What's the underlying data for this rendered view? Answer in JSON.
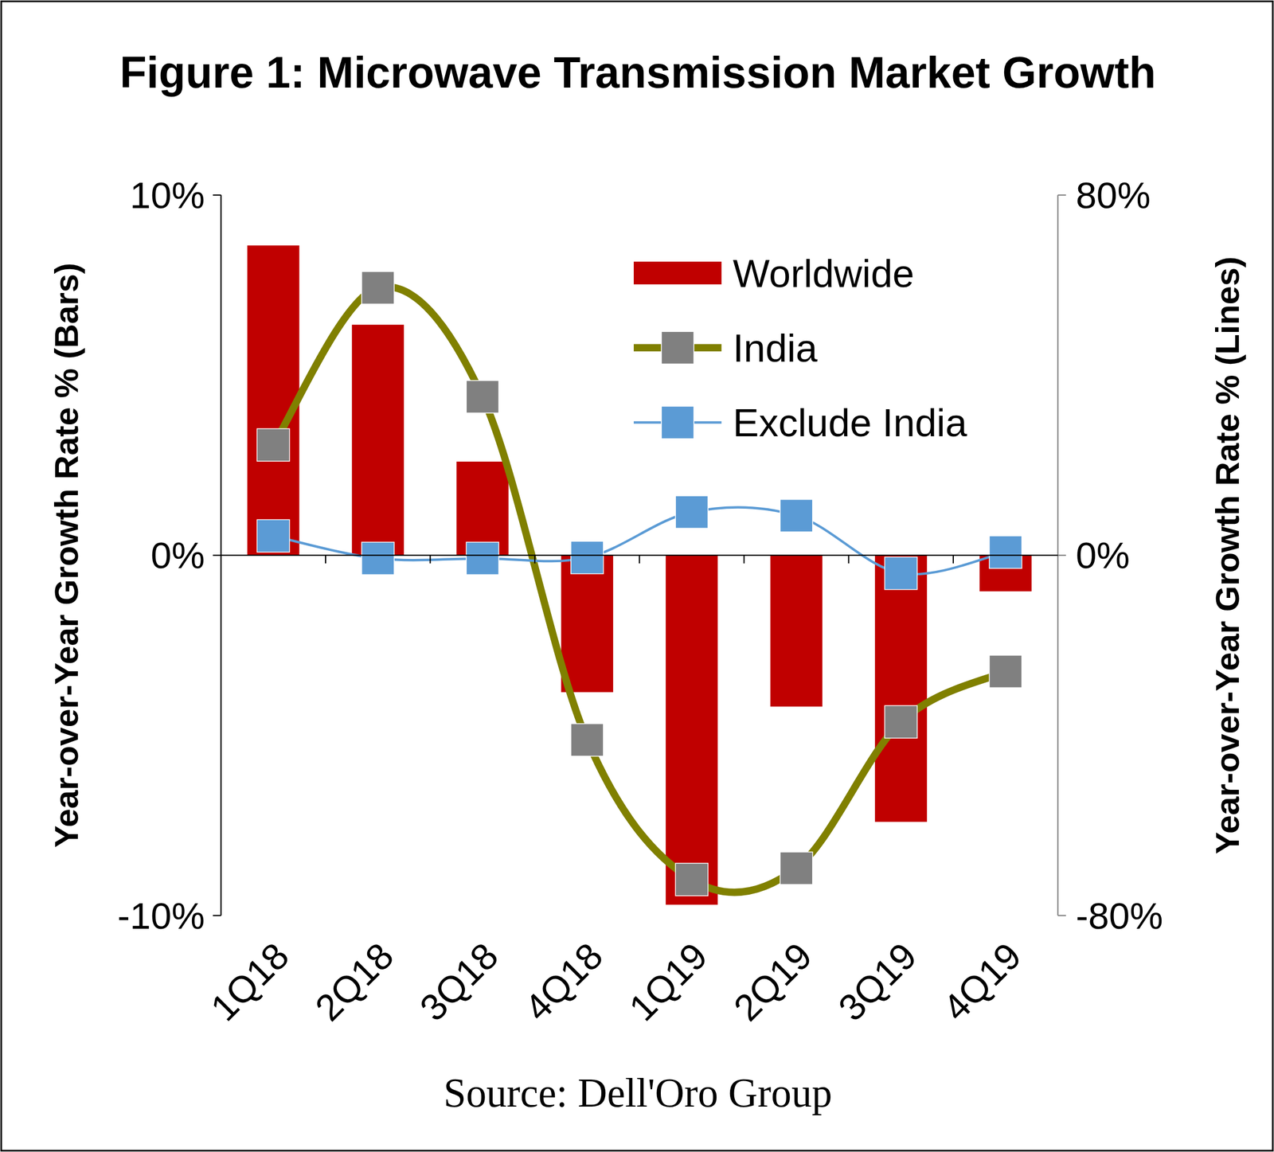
{
  "chart_data": {
    "type": "bar",
    "title": "Figure 1: Microwave Transmission Market Growth",
    "source": "Source: Dell'Oro Group",
    "y_label": "Year-over-Year Growth Rate % (Bars)",
    "y2_label": "Year-over-Year Growth Rate % (Lines)",
    "categories": [
      "1Q18",
      "2Q18",
      "3Q18",
      "4Q18",
      "1Q19",
      "2Q19",
      "3Q19",
      "4Q19"
    ],
    "series": [
      {
        "name": "Worldwide",
        "type": "bar",
        "color": "#c00000",
        "values": [
          8.6,
          6.4,
          2.6,
          -3.8,
          -9.7,
          -4.2,
          -7.4,
          -1.0
        ]
      },
      {
        "name": "India",
        "type": "line",
        "axis": "y2",
        "color": "#808000",
        "marker": "square",
        "line_style": "smooth",
        "values": [
          24.5,
          59.4,
          35.2,
          -41.0,
          -72.0,
          -69.5,
          -37.0,
          -25.8
        ]
      },
      {
        "name": "Exclude India",
        "type": "line",
        "axis": "y2",
        "color": "#5b9bd5",
        "marker": "square",
        "line_style": "smooth",
        "values": [
          4.3,
          -0.7,
          -0.7,
          -0.5,
          9.6,
          8.8,
          -4.0,
          0.7
        ]
      }
    ],
    "ylim": [
      -10,
      10
    ],
    "yticks": [
      {
        "value": -10,
        "label": "-10%"
      },
      {
        "value": 0,
        "label": "0%"
      },
      {
        "value": 10,
        "label": "10%"
      }
    ],
    "y2lim": [
      -80,
      80
    ],
    "y2ticks": [
      {
        "value": -80,
        "label": "-80%"
      },
      {
        "value": 0,
        "label": "0%"
      },
      {
        "value": 80,
        "label": "80%"
      }
    ],
    "legend": "top-right",
    "grid": false
  }
}
